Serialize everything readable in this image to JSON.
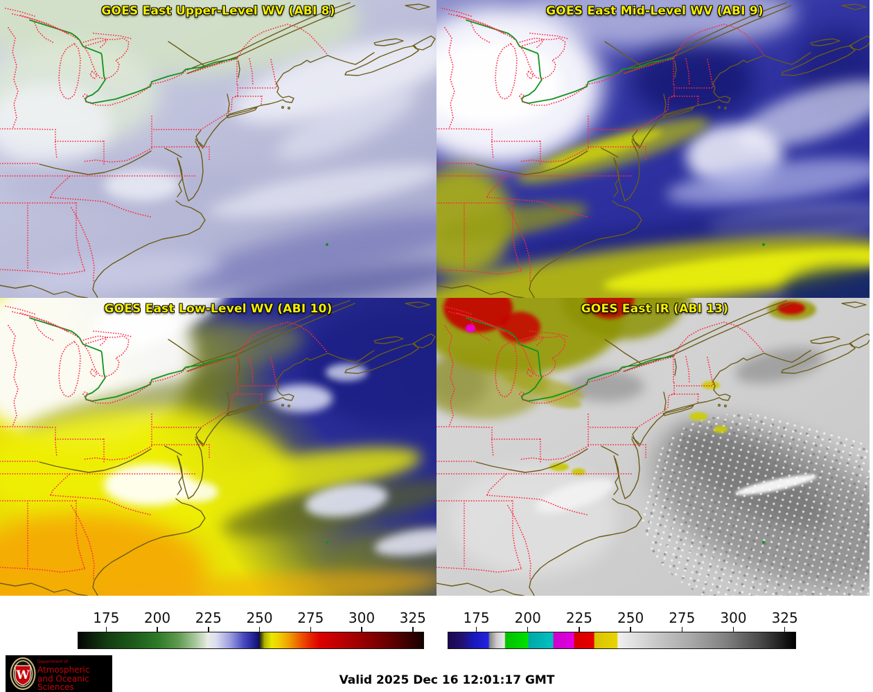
{
  "app": {
    "description": "GOES East four-panel water vapor and infrared satellite viewer"
  },
  "panels": [
    {
      "id": "abi8",
      "title": "GOES East Upper-Level WV (ABI 8)"
    },
    {
      "id": "abi9",
      "title": "GOES East Mid-Level WV (ABI 9)"
    },
    {
      "id": "abi10",
      "title": "GOES East Low-Level WV (ABI 10)"
    },
    {
      "id": "abi13",
      "title": "GOES East IR (ABI 13)"
    }
  ],
  "colorbars": [
    {
      "id": "wv-colorbar",
      "ticks": [
        175,
        200,
        225,
        250,
        275,
        300,
        325
      ],
      "range_k": [
        161,
        330.5
      ],
      "gradient": [
        {
          "p": 0,
          "c": "#050505"
        },
        {
          "p": 8,
          "c": "#123c10"
        },
        {
          "p": 16,
          "c": "#1e5a1a"
        },
        {
          "p": 23,
          "c": "#2e7a28"
        },
        {
          "p": 29,
          "c": "#5f9a50"
        },
        {
          "p": 34,
          "c": "#aac89e"
        },
        {
          "p": 37.5,
          "c": "#e8ece4"
        },
        {
          "p": 40,
          "c": "#dcdcf0"
        },
        {
          "p": 44,
          "c": "#9a9ede"
        },
        {
          "p": 48,
          "c": "#4848c0"
        },
        {
          "p": 51,
          "c": "#20208f"
        },
        {
          "p": 52.4,
          "c": "#101060"
        },
        {
          "p": 52.9,
          "c": "#404000"
        },
        {
          "p": 54,
          "c": "#b0b000"
        },
        {
          "p": 56,
          "c": "#e8e800"
        },
        {
          "p": 58,
          "c": "#f0d000"
        },
        {
          "p": 61,
          "c": "#f0a000"
        },
        {
          "p": 64,
          "c": "#ee6000"
        },
        {
          "p": 67,
          "c": "#e82800"
        },
        {
          "p": 70,
          "c": "#dc0000"
        },
        {
          "p": 76,
          "c": "#bc0000"
        },
        {
          "p": 83,
          "c": "#940000"
        },
        {
          "p": 90,
          "c": "#660000"
        },
        {
          "p": 96,
          "c": "#380000"
        },
        {
          "p": 100,
          "c": "#160000"
        }
      ]
    },
    {
      "id": "ir-colorbar",
      "ticks": [
        175,
        200,
        225,
        250,
        275,
        300,
        325
      ],
      "range_k": [
        161,
        330.5
      ],
      "gradient": [
        {
          "p": 0,
          "c": "#1c0850"
        },
        {
          "p": 4,
          "c": "#221070"
        },
        {
          "p": 7,
          "c": "#1818b8"
        },
        {
          "p": 11.5,
          "c": "#2222e0"
        },
        {
          "p": 12,
          "c": "#888888"
        },
        {
          "p": 14,
          "c": "#cccccc"
        },
        {
          "p": 16.2,
          "c": "#e8e8e8"
        },
        {
          "p": 16.5,
          "c": "#00c000"
        },
        {
          "p": 22.9,
          "c": "#00e000"
        },
        {
          "p": 23.2,
          "c": "#00a8a8"
        },
        {
          "p": 30.1,
          "c": "#00c0c0"
        },
        {
          "p": 30.4,
          "c": "#cc00cc"
        },
        {
          "p": 36.1,
          "c": "#e000e0"
        },
        {
          "p": 36.4,
          "c": "#d80000"
        },
        {
          "p": 41.9,
          "c": "#e80000"
        },
        {
          "p": 42.2,
          "c": "#d8c400"
        },
        {
          "p": 48.6,
          "c": "#e8d400"
        },
        {
          "p": 48.9,
          "c": "#f0f0f0"
        },
        {
          "p": 60,
          "c": "#c8c8c8"
        },
        {
          "p": 70,
          "c": "#a8a8a8"
        },
        {
          "p": 80,
          "c": "#808080"
        },
        {
          "p": 90,
          "c": "#484848"
        },
        {
          "p": 100,
          "c": "#000000"
        }
      ]
    }
  ],
  "footer": {
    "valid_time": "Valid 2025 Dec 16 12:01:17 GMT",
    "logo": {
      "dept": "Department of",
      "line1": "Atmospheric",
      "line2": "and Oceanic Sciences",
      "monogram": "W"
    }
  },
  "colors": {
    "title_text": "#f5ef00",
    "state_border": "#ff2840",
    "coastline": "#6b5c18",
    "intl_border": "#12921e",
    "logo_red": "#c5050c",
    "logo_bg": "#000000",
    "valid_text": "#000000",
    "page_bg": "#ffffff"
  }
}
